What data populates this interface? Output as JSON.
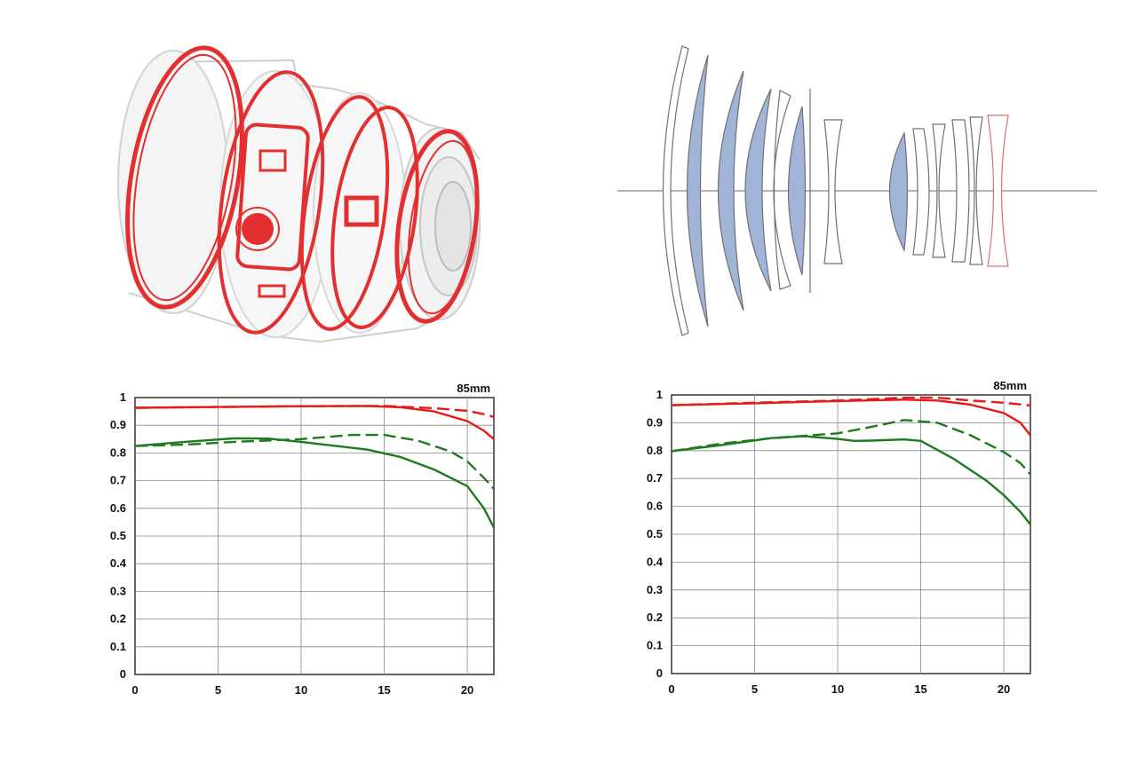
{
  "illustrations": {
    "lens_exterior": {
      "icon": "lens-barrel-seals-icon",
      "seal_color": "#e23030"
    },
    "optical_diagram": {
      "icon": "lens-elements-icon",
      "special_element_color": "#9fb4d6"
    }
  },
  "colors": {
    "sagittal": "#e41b17",
    "meridional": "#1e7a1e",
    "grid": "#888888"
  },
  "chart_data": [
    {
      "type": "line",
      "title": "",
      "focal_label": "85mm",
      "xlim": [
        0,
        21.6
      ],
      "ylim": [
        0,
        1
      ],
      "x_ticks": [
        "0",
        "5",
        "10",
        "15",
        "20"
      ],
      "y_ticks": [
        "0",
        "0.1",
        "0.2",
        "0.3",
        "0.4",
        "0.5",
        "0.6",
        "0.7",
        "0.8",
        "0.9",
        "1"
      ],
      "grid": true,
      "series": [
        {
          "style": "solid",
          "color": "#e41b17",
          "points": [
            [
              0,
              0.963
            ],
            [
              5,
              0.966
            ],
            [
              10,
              0.969
            ],
            [
              14,
              0.97
            ],
            [
              16,
              0.965
            ],
            [
              18,
              0.95
            ],
            [
              20,
              0.915
            ],
            [
              21,
              0.88
            ],
            [
              21.6,
              0.85
            ]
          ]
        },
        {
          "style": "dashed",
          "color": "#e41b17",
          "points": [
            [
              0,
              0.963
            ],
            [
              5,
              0.966
            ],
            [
              10,
              0.969
            ],
            [
              15,
              0.97
            ],
            [
              18,
              0.962
            ],
            [
              20,
              0.952
            ],
            [
              21,
              0.94
            ],
            [
              21.6,
              0.93
            ]
          ]
        },
        {
          "style": "solid",
          "color": "#1e7a1e",
          "points": [
            [
              0,
              0.825
            ],
            [
              3,
              0.84
            ],
            [
              6,
              0.853
            ],
            [
              8,
              0.852
            ],
            [
              10,
              0.84
            ],
            [
              12,
              0.826
            ],
            [
              14,
              0.812
            ],
            [
              16,
              0.785
            ],
            [
              18,
              0.74
            ],
            [
              20,
              0.68
            ],
            [
              21,
              0.6
            ],
            [
              21.6,
              0.53
            ]
          ]
        },
        {
          "style": "dashed",
          "color": "#1e7a1e",
          "points": [
            [
              0,
              0.825
            ],
            [
              3,
              0.83
            ],
            [
              6,
              0.84
            ],
            [
              10,
              0.85
            ],
            [
              13,
              0.865
            ],
            [
              15,
              0.865
            ],
            [
              17,
              0.845
            ],
            [
              19,
              0.805
            ],
            [
              20,
              0.77
            ],
            [
              21,
              0.71
            ],
            [
              21.6,
              0.67
            ]
          ]
        }
      ]
    },
    {
      "type": "line",
      "title": "",
      "focal_label": "85mm",
      "xlim": [
        0,
        21.6
      ],
      "ylim": [
        0,
        1
      ],
      "x_ticks": [
        "0",
        "5",
        "10",
        "15",
        "20"
      ],
      "y_ticks": [
        "0",
        "0.1",
        "0.2",
        "0.3",
        "0.4",
        "0.5",
        "0.6",
        "0.7",
        "0.8",
        "0.9",
        "1"
      ],
      "grid": true,
      "series": [
        {
          "style": "solid",
          "color": "#e41b17",
          "points": [
            [
              0,
              0.963
            ],
            [
              5,
              0.97
            ],
            [
              10,
              0.978
            ],
            [
              14,
              0.983
            ],
            [
              16,
              0.98
            ],
            [
              18,
              0.965
            ],
            [
              20,
              0.935
            ],
            [
              21,
              0.9
            ],
            [
              21.6,
              0.855
            ]
          ]
        },
        {
          "style": "dashed",
          "color": "#e41b17",
          "points": [
            [
              0,
              0.963
            ],
            [
              5,
              0.972
            ],
            [
              10,
              0.98
            ],
            [
              14,
              0.99
            ],
            [
              16,
              0.99
            ],
            [
              18,
              0.98
            ],
            [
              20,
              0.972
            ],
            [
              21.6,
              0.962
            ]
          ]
        },
        {
          "style": "solid",
          "color": "#1e7a1e",
          "points": [
            [
              0,
              0.798
            ],
            [
              3,
              0.82
            ],
            [
              6,
              0.845
            ],
            [
              8,
              0.852
            ],
            [
              10,
              0.842
            ],
            [
              11,
              0.835
            ],
            [
              12,
              0.836
            ],
            [
              14,
              0.84
            ],
            [
              15,
              0.835
            ],
            [
              17,
              0.77
            ],
            [
              19,
              0.69
            ],
            [
              20,
              0.64
            ],
            [
              21,
              0.58
            ],
            [
              21.6,
              0.535
            ]
          ]
        },
        {
          "style": "dashed",
          "color": "#1e7a1e",
          "points": [
            [
              0,
              0.798
            ],
            [
              3,
              0.825
            ],
            [
              6,
              0.845
            ],
            [
              10,
              0.862
            ],
            [
              12,
              0.885
            ],
            [
              14,
              0.91
            ],
            [
              16,
              0.9
            ],
            [
              18,
              0.855
            ],
            [
              20,
              0.795
            ],
            [
              21,
              0.755
            ],
            [
              21.6,
              0.715
            ]
          ]
        }
      ]
    }
  ]
}
